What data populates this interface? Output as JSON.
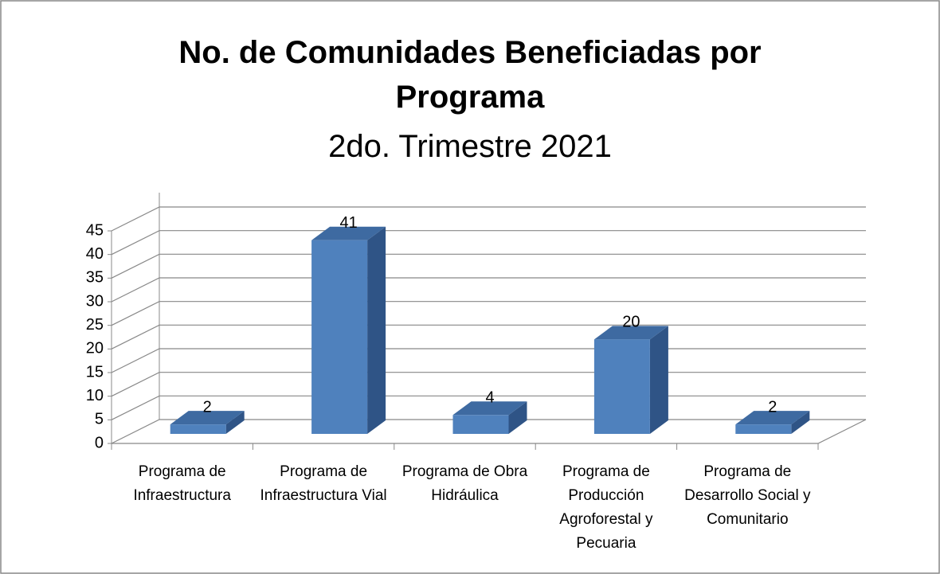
{
  "chart_data": {
    "type": "bar3d",
    "title": "No. de Comunidades Beneficiadas por Programa",
    "subtitle": "2do. Trimestre 2021",
    "categories": [
      "Programa de Infraestructura",
      "Programa de Infraestructura Vial",
      "Programa de Obra Hidráulica",
      "Programa de Producción Agroforestal y Pecuaria",
      "Programa de Desarrollo Social y Comunitario"
    ],
    "values": [
      2,
      41,
      4,
      20,
      2
    ],
    "color": "#4f81bd",
    "ylim": [
      0,
      45
    ],
    "yticks": [
      0,
      5,
      10,
      15,
      20,
      25,
      30,
      35,
      40,
      45
    ],
    "grid": true
  }
}
